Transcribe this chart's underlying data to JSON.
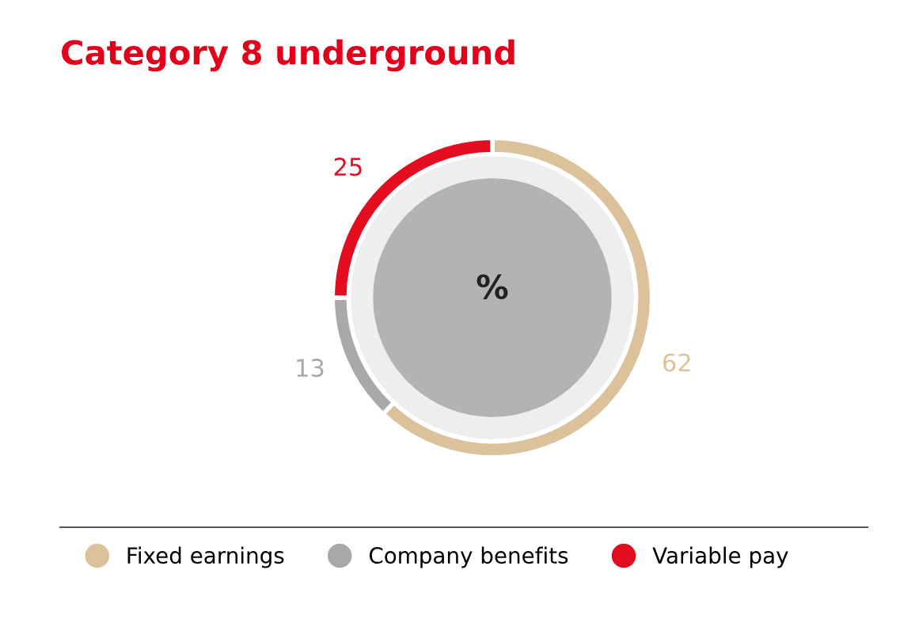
{
  "chart_data": {
    "type": "donut",
    "title": "Category 8 underground",
    "categories": [
      "Fixed earnings",
      "Company benefits",
      "Variable pay"
    ],
    "values": [
      62,
      13,
      25
    ],
    "colors": [
      "#dbc29b",
      "#a8a9ab",
      "#e30d1f"
    ],
    "data_labels": true,
    "annotations": [
      "%"
    ],
    "legend": "bottom"
  }
}
